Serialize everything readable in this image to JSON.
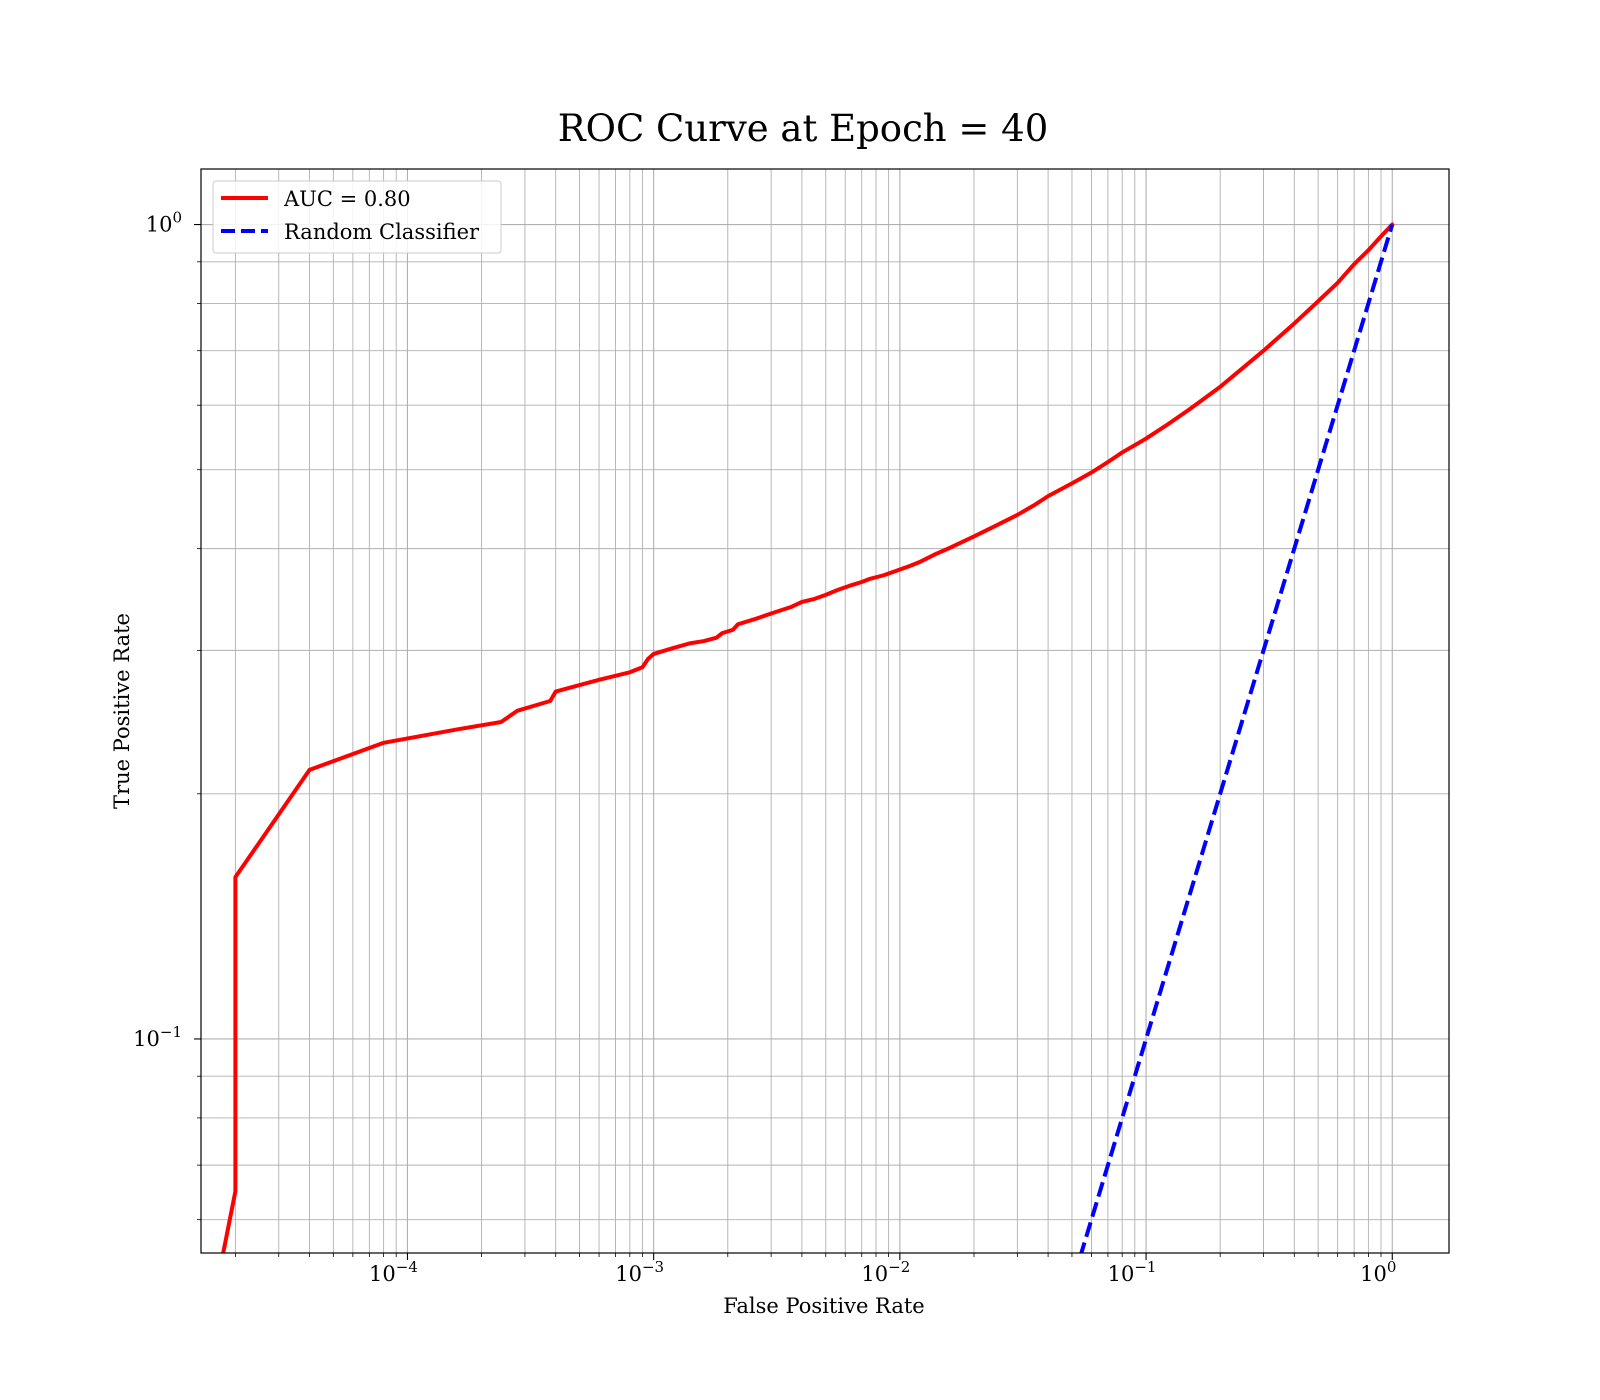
{
  "chart_data": {
    "type": "line",
    "title": "ROC Curve at Epoch = 40",
    "xlabel": "False Positive Rate",
    "ylabel": "True Positive Rate",
    "xscale": "log",
    "yscale": "log",
    "xlim": [
      1.45e-05,
      1.7
    ],
    "ylim": [
      0.0546,
      1.17
    ],
    "grid": true,
    "legend_position": "top-left",
    "x_major_ticks": [
      {
        "value": 0.0001,
        "base": "10",
        "exp": "−4"
      },
      {
        "value": 0.001,
        "base": "10",
        "exp": "−3"
      },
      {
        "value": 0.01,
        "base": "10",
        "exp": "−2"
      },
      {
        "value": 0.1,
        "base": "10",
        "exp": "−1"
      },
      {
        "value": 1,
        "base": "10",
        "exp": "0"
      }
    ],
    "y_major_ticks": [
      {
        "value": 0.1,
        "base": "10",
        "exp": "−1"
      },
      {
        "value": 1,
        "base": "10",
        "exp": "0"
      }
    ],
    "series": [
      {
        "name": "AUC = 0.80",
        "color": "#ff0000",
        "style": "solid",
        "points": [
          [
            1.75e-05,
            0.053
          ],
          [
            2e-05,
            0.065
          ],
          [
            2e-05,
            0.158
          ],
          [
            4e-05,
            0.214
          ],
          [
            8e-05,
            0.231
          ],
          [
            0.00016,
            0.24
          ],
          [
            0.00024,
            0.245
          ],
          [
            0.00028,
            0.253
          ],
          [
            0.00038,
            0.26
          ],
          [
            0.0004,
            0.267
          ],
          [
            0.0005,
            0.272
          ],
          [
            0.0006,
            0.276
          ],
          [
            0.0008,
            0.282
          ],
          [
            0.0009,
            0.286
          ],
          [
            0.00095,
            0.293
          ],
          [
            0.001,
            0.297
          ],
          [
            0.0012,
            0.302
          ],
          [
            0.0014,
            0.306
          ],
          [
            0.0016,
            0.308
          ],
          [
            0.0018,
            0.311
          ],
          [
            0.0019,
            0.315
          ],
          [
            0.0021,
            0.318
          ],
          [
            0.0022,
            0.323
          ],
          [
            0.0026,
            0.328
          ],
          [
            0.003,
            0.333
          ],
          [
            0.0036,
            0.339
          ],
          [
            0.004,
            0.344
          ],
          [
            0.0045,
            0.347
          ],
          [
            0.005,
            0.351
          ],
          [
            0.0056,
            0.356
          ],
          [
            0.0064,
            0.361
          ],
          [
            0.007,
            0.364
          ],
          [
            0.0075,
            0.367
          ],
          [
            0.0086,
            0.371
          ],
          [
            0.0095,
            0.375
          ],
          [
            0.011,
            0.381
          ],
          [
            0.012,
            0.385
          ],
          [
            0.014,
            0.394
          ],
          [
            0.016,
            0.401
          ],
          [
            0.02,
            0.414
          ],
          [
            0.025,
            0.428
          ],
          [
            0.03,
            0.44
          ],
          [
            0.035,
            0.452
          ],
          [
            0.04,
            0.464
          ],
          [
            0.05,
            0.481
          ],
          [
            0.06,
            0.496
          ],
          [
            0.07,
            0.511
          ],
          [
            0.08,
            0.525
          ],
          [
            0.1,
            0.546
          ],
          [
            0.12,
            0.566
          ],
          [
            0.15,
            0.593
          ],
          [
            0.2,
            0.632
          ],
          [
            0.3,
            0.7
          ],
          [
            0.4,
            0.756
          ],
          [
            0.5,
            0.805
          ],
          [
            0.6,
            0.848
          ],
          [
            0.7,
            0.894
          ],
          [
            0.8,
            0.93
          ],
          [
            0.9,
            0.967
          ],
          [
            1.0,
            1.0
          ]
        ]
      },
      {
        "name": "Random Classifier",
        "color": "#0000ff",
        "style": "dashed",
        "points": [
          [
            0.054,
            0.054
          ],
          [
            1.0,
            1.0
          ]
        ]
      }
    ]
  }
}
